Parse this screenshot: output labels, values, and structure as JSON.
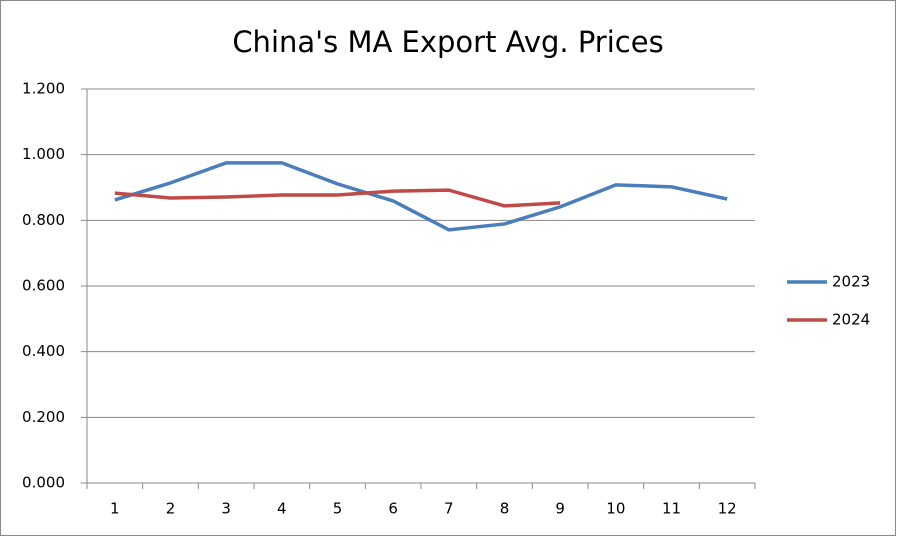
{
  "chart_data": {
    "type": "line",
    "title": "China's MA Export Avg. Prices",
    "categories": [
      "1",
      "2",
      "3",
      "4",
      "5",
      "6",
      "7",
      "8",
      "9",
      "10",
      "11",
      "12"
    ],
    "series": [
      {
        "name": "2023",
        "color": "#4a7ebb",
        "values": [
          0.862,
          0.914,
          0.975,
          0.975,
          0.911,
          0.859,
          0.771,
          0.789,
          0.841,
          0.908,
          0.902,
          0.865
        ]
      },
      {
        "name": "2024",
        "color": "#be4b48",
        "values": [
          0.883,
          0.868,
          0.871,
          0.877,
          0.877,
          0.889,
          0.892,
          0.844,
          0.853,
          null,
          null,
          null
        ]
      }
    ],
    "ylim": [
      0,
      1.2
    ],
    "yticks": [
      {
        "value": 0,
        "label": "0.000"
      },
      {
        "value": 0.2,
        "label": "0.200"
      },
      {
        "value": 0.4,
        "label": "0.400"
      },
      {
        "value": 0.6,
        "label": "0.600"
      },
      {
        "value": 0.8,
        "label": "0.800"
      },
      {
        "value": 1.0,
        "label": "1.000"
      },
      {
        "value": 1.2,
        "label": "1.200"
      }
    ],
    "grid": true,
    "legend": "right"
  }
}
